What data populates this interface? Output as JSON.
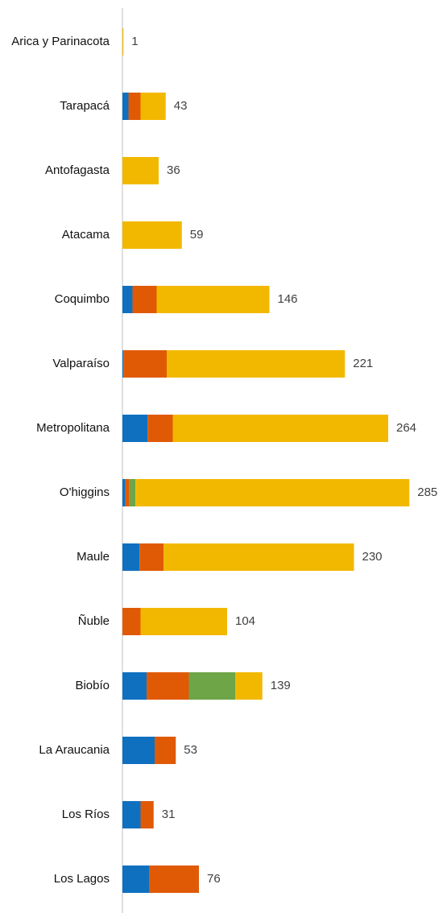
{
  "chart_data": {
    "type": "stacked-bar-horizontal",
    "categories": [
      "Arica y Parinacota",
      "Tarapacá",
      "Antofagasta",
      "Atacama",
      "Coquimbo",
      "Valparaíso",
      "Metropolitana",
      "O'higgins",
      "Maule",
      "Ñuble",
      "Biobío",
      "La Araucania",
      "Los Ríos",
      "Los Lagos"
    ],
    "series": [
      {
        "color": "#0F70C0",
        "values": [
          0,
          6,
          0,
          0,
          10,
          1,
          25,
          3,
          17,
          0,
          24,
          32,
          18,
          27
        ]
      },
      {
        "color": "#E05A06",
        "values": [
          0,
          12,
          0,
          0,
          24,
          43,
          25,
          4,
          24,
          18,
          42,
          21,
          13,
          49
        ]
      },
      {
        "color": "#6EA546",
        "values": [
          0,
          0,
          0,
          0,
          0,
          0,
          0,
          6,
          0,
          0,
          46,
          0,
          0,
          0
        ]
      },
      {
        "color": "#F2B800",
        "values": [
          1,
          25,
          36,
          59,
          112,
          177,
          214,
          272,
          189,
          86,
          27,
          0,
          0,
          0
        ]
      }
    ],
    "totals": [
      1,
      43,
      36,
      59,
      146,
      221,
      264,
      285,
      230,
      104,
      139,
      53,
      31,
      76
    ],
    "xlim": [
      0,
      300
    ]
  }
}
